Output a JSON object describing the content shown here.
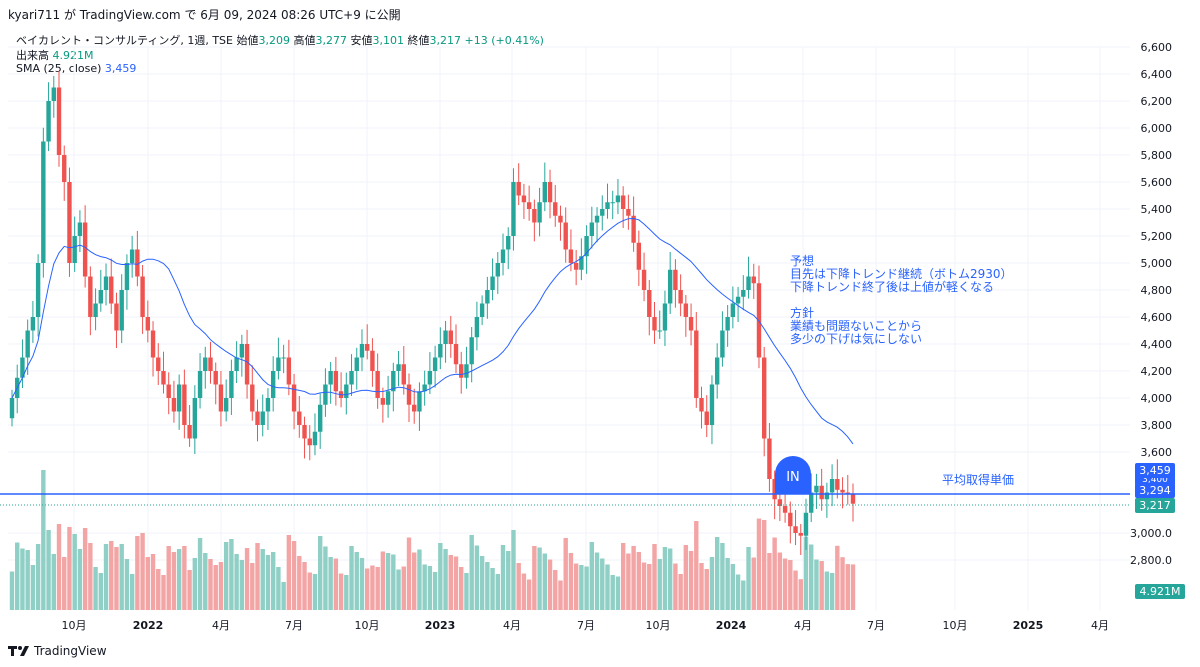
{
  "header": {
    "published_line": "kyari711 が TradingView.com で 6月 09, 2024 08:26 UTC+9 に公開"
  },
  "legend": {
    "symbol": "ベイカレント・コンサルティング, 1週, TSE",
    "open_label": "始値",
    "open": "3,209",
    "high_label": "高値",
    "high": "3,277",
    "low_label": "安値",
    "low": "3,101",
    "close_label": "終値",
    "close": "3,217",
    "change": "+13 (+0.41%)",
    "volume_label": "出来高",
    "volume": "4.921M",
    "sma_label": "SMA (25, close)",
    "sma": "3,459"
  },
  "annotations": {
    "forecast_title": "予想",
    "forecast_line1": "目先は下降トレンド継続（ボトム2930）",
    "forecast_line2": "下降トレンド終了後は上値が軽くなる",
    "policy_title": "方針",
    "policy_line1": "業績も問題ないことから",
    "policy_line2": "多少の下げは気にしない",
    "in_marker": "IN",
    "avg_cost_label": "平均取得単価"
  },
  "price_badges": {
    "sma": "3,459",
    "avg_cost": "3,294",
    "last": "3,217",
    "hidden": "3,400",
    "volume": "4.921M"
  },
  "footer": {
    "brand": "TradingView"
  },
  "colors": {
    "up": "#26a69a",
    "down": "#ef5350",
    "sma": "#2962ff",
    "avg_line": "#2962ff",
    "vol_up": "#8fcfc5",
    "vol_down": "#f3a4a4"
  },
  "chart_data": {
    "type": "candlestick",
    "title": "ベイカレント・コンサルティング, 1週, TSE",
    "y_ticks": [
      "6,600",
      "6,400",
      "6,200",
      "6,000",
      "5,800",
      "5,600",
      "5,400",
      "5,200",
      "5,000",
      "4,800",
      "4,600",
      "4,400",
      "4,200",
      "4,000",
      "3,800",
      "3,600",
      "3,000.0",
      "2,800.0"
    ],
    "x_ticks": [
      "10月",
      "2022",
      "4月",
      "7月",
      "10月",
      "2023",
      "4月",
      "7月",
      "10月",
      "2024",
      "4月",
      "7月",
      "10月",
      "2025",
      "4月"
    ],
    "ylim": [
      2560,
      6680
    ],
    "grid": true,
    "weekly_close": [
      4000,
      4150,
      4300,
      4500,
      4600,
      5000,
      5900,
      6200,
      6300,
      5800,
      5600,
      5000,
      5200,
      5300,
      4900,
      4600,
      4700,
      4800,
      4900,
      4700,
      4500,
      4800,
      5000,
      5100,
      4900,
      4600,
      4500,
      4300,
      4200,
      4100,
      4000,
      3900,
      4100,
      3800,
      3700,
      4000,
      4200,
      4300,
      4200,
      4100,
      3900,
      4000,
      4200,
      4300,
      4400,
      4100,
      3900,
      3800,
      3900,
      4000,
      4200,
      4300,
      4300,
      4100,
      3900,
      3800,
      3700,
      3650,
      3750,
      3950,
      4100,
      4200,
      4050,
      4000,
      4100,
      4200,
      4300,
      4400,
      4350,
      4200,
      4000,
      3950,
      4050,
      4200,
      4250,
      4100,
      3950,
      3900,
      4050,
      4100,
      4200,
      4300,
      4400,
      4500,
      4400,
      4250,
      4150,
      4250,
      4450,
      4600,
      4700,
      4800,
      4900,
      5000,
      5100,
      5200,
      5600,
      5500,
      5450,
      5400,
      5300,
      5450,
      5600,
      5450,
      5350,
      5300,
      5100,
      5000,
      4950,
      5050,
      5200,
      5300,
      5350,
      5400,
      5450,
      5450,
      5500,
      5400,
      5350,
      5150,
      4950,
      4800,
      4600,
      4500,
      4500,
      4700,
      4950,
      4800,
      4700,
      4600,
      4500,
      4000,
      3900,
      3800,
      4100,
      4300,
      4500,
      4600,
      4700,
      4750,
      4800,
      4900,
      4850,
      4300,
      3700,
      3400,
      3250,
      3200,
      3150,
      3050,
      3000,
      2980,
      3150,
      3300,
      3350,
      3250,
      3300,
      3400,
      3320,
      3300,
      3290,
      3217
    ],
    "volume_summary": "weekly volume bars, latest 4.921M"
  }
}
